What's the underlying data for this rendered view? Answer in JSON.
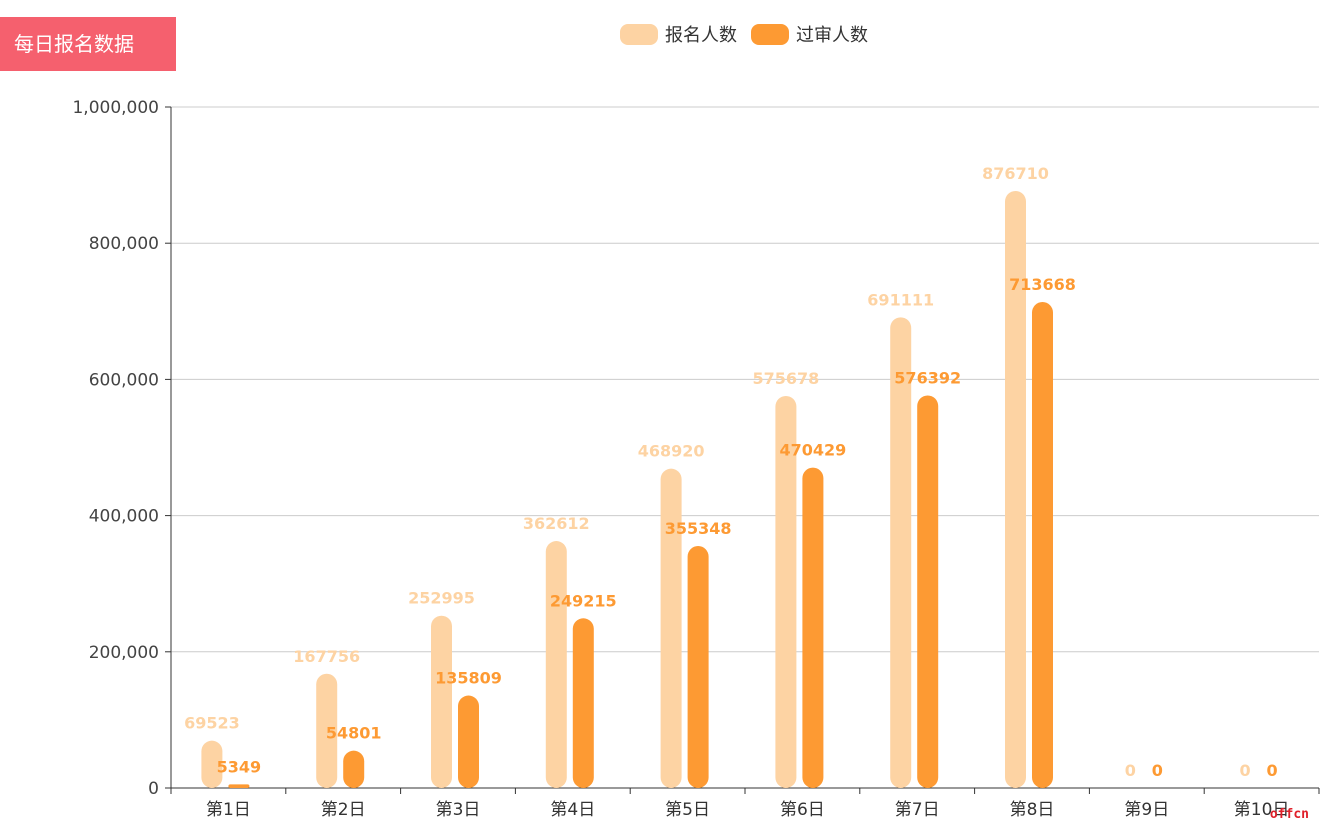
{
  "chart_data": {
    "type": "bar",
    "title": "每日报名数据",
    "categories": [
      "第1日",
      "第2日",
      "第3日",
      "第4日",
      "第5日",
      "第6日",
      "第7日",
      "第8日",
      "第9日",
      "第10日"
    ],
    "series": [
      {
        "name": "报名人数",
        "color": "#fdd3a3",
        "values": [
          69523,
          167756,
          252995,
          362612,
          468920,
          575678,
          691111,
          876710,
          0,
          0
        ]
      },
      {
        "name": "过审人数",
        "color": "#fd9a33",
        "values": [
          5349,
          54801,
          135809,
          249215,
          355348,
          470429,
          576392,
          713668,
          0,
          0
        ]
      }
    ],
    "yticks": [
      "0",
      "200,000",
      "400,000",
      "600,000",
      "800,000",
      "1,000,000"
    ],
    "ylim": [
      0,
      1000000
    ],
    "legend_position": "top-center",
    "grid": true
  },
  "watermark": "offcn"
}
